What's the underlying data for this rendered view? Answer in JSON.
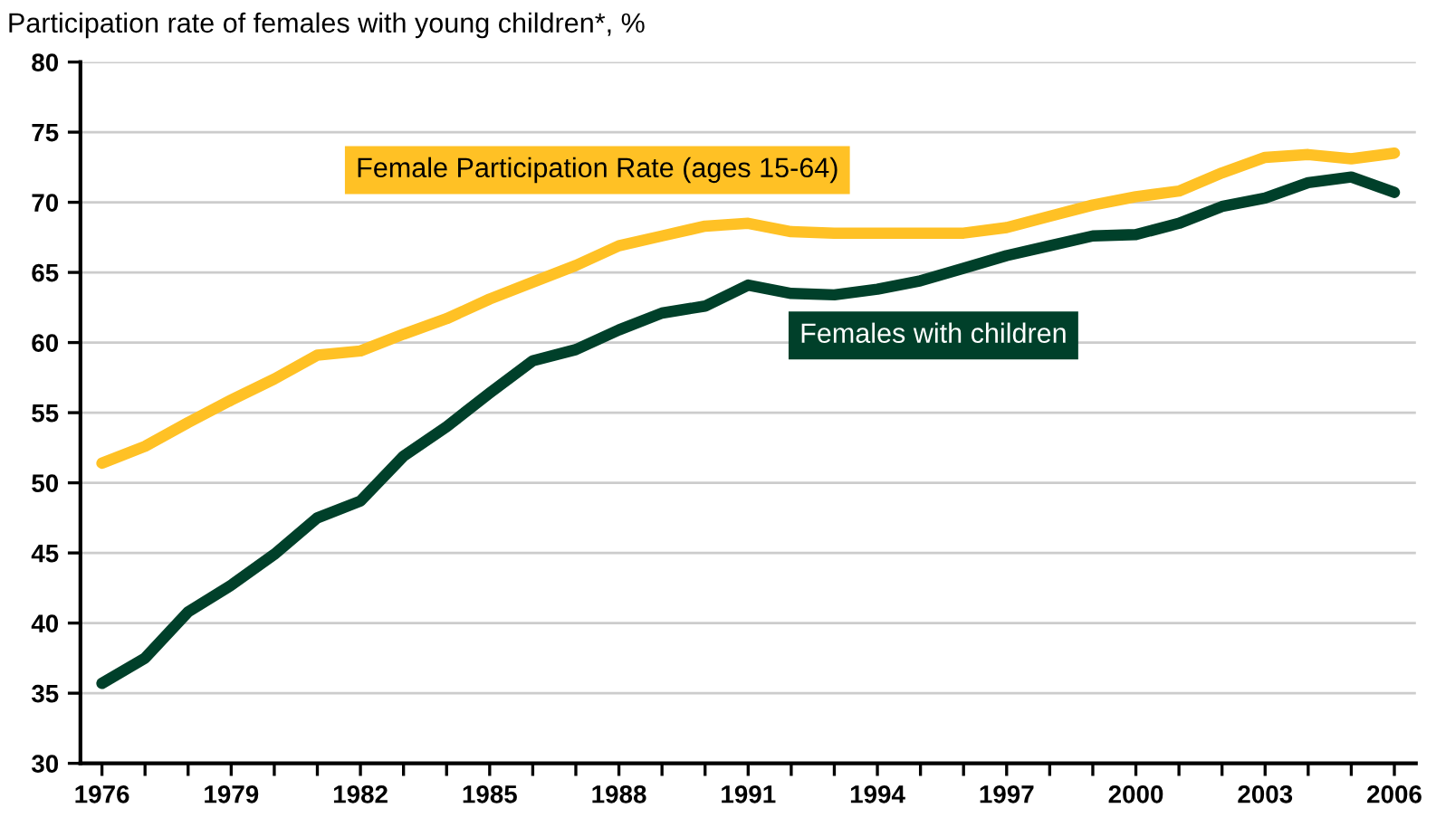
{
  "chart_data": {
    "type": "line",
    "title": "Participation rate of females with young children*, %",
    "x": [
      1976,
      1977,
      1978,
      1979,
      1980,
      1981,
      1982,
      1983,
      1984,
      1985,
      1986,
      1987,
      1988,
      1989,
      1990,
      1991,
      1992,
      1993,
      1994,
      1995,
      1996,
      1997,
      1998,
      1999,
      2000,
      2001,
      2002,
      2003,
      2004,
      2005,
      2006
    ],
    "series": [
      {
        "name": "Female Participation Rate (ages 15-64)",
        "color": "#ffc125",
        "values": [
          51.4,
          52.6,
          54.3,
          55.9,
          57.4,
          59.1,
          59.4,
          60.6,
          61.7,
          63.1,
          64.3,
          65.5,
          66.9,
          67.6,
          68.3,
          68.5,
          67.9,
          67.8,
          67.8,
          67.8,
          67.8,
          68.2,
          69.0,
          69.8,
          70.4,
          70.8,
          72.1,
          73.2,
          73.4,
          73.1,
          73.5
        ]
      },
      {
        "name": "Females with children",
        "color": "#00402a",
        "values": [
          35.7,
          37.5,
          40.8,
          42.7,
          44.9,
          47.5,
          48.7,
          51.9,
          54.0,
          56.4,
          58.7,
          59.5,
          60.9,
          62.1,
          62.6,
          64.1,
          63.5,
          63.4,
          63.8,
          64.4,
          65.3,
          66.2,
          66.9,
          67.6,
          67.7,
          68.5,
          69.7,
          70.3,
          71.4,
          71.8,
          70.7
        ]
      }
    ],
    "xlim": [
      1975.5,
      2006.5
    ],
    "xticks": [
      1976,
      {
        "value": 1977,
        "label": null
      },
      {
        "value": 1978,
        "label": null
      },
      1979,
      {
        "value": 1980,
        "label": null
      },
      {
        "value": 1981,
        "label": null
      },
      1982,
      {
        "value": 1983,
        "label": null
      },
      {
        "value": 1984,
        "label": null
      },
      1985,
      {
        "value": 1986,
        "label": null
      },
      {
        "value": 1987,
        "label": null
      },
      1988,
      {
        "value": 1989,
        "label": null
      },
      {
        "value": 1990,
        "label": null
      },
      1991,
      {
        "value": 1992,
        "label": null
      },
      {
        "value": 1993,
        "label": null
      },
      1994,
      {
        "value": 1995,
        "label": null
      },
      {
        "value": 1996,
        "label": null
      },
      1997,
      {
        "value": 1998,
        "label": null
      },
      {
        "value": 1999,
        "label": null
      },
      2000,
      {
        "value": 2001,
        "label": null
      },
      {
        "value": 2002,
        "label": null
      },
      2003,
      {
        "value": 2004,
        "label": null
      },
      {
        "value": 2005,
        "label": null
      },
      2006
    ],
    "ylim": [
      30,
      80
    ],
    "yticks": [
      30,
      35,
      40,
      45,
      50,
      55,
      60,
      65,
      70,
      75,
      80
    ],
    "grid": "y",
    "legend": false,
    "marker": "none",
    "line_style": "solid"
  }
}
